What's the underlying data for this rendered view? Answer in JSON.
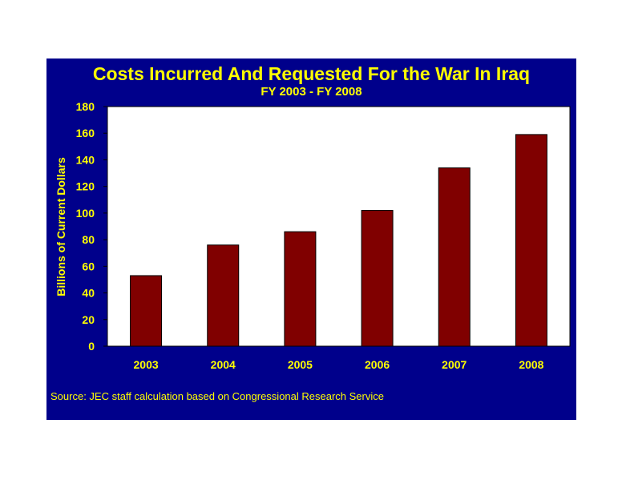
{
  "chart_data": {
    "type": "bar",
    "title": "Costs Incurred And Requested For the War In Iraq",
    "subtitle": "FY 2003 - FY 2008",
    "xlabel": "",
    "ylabel": "Billions of Current Dollars",
    "categories": [
      "2003",
      "2004",
      "2005",
      "2006",
      "2007",
      "2008"
    ],
    "values": [
      53,
      76,
      86,
      102,
      134,
      159
    ],
    "ylim": [
      0,
      180
    ],
    "yticks": [
      "0",
      "20",
      "40",
      "60",
      "80",
      "100",
      "120",
      "140",
      "160",
      "180"
    ],
    "grid": false,
    "legend": "none",
    "source": "Source: JEC staff calculation based on Congressional Research Service"
  },
  "colors": {
    "panel_background": "#00008b",
    "plot_background": "#ffffff",
    "bar_fill": "#800000",
    "text": "#ffff00"
  }
}
